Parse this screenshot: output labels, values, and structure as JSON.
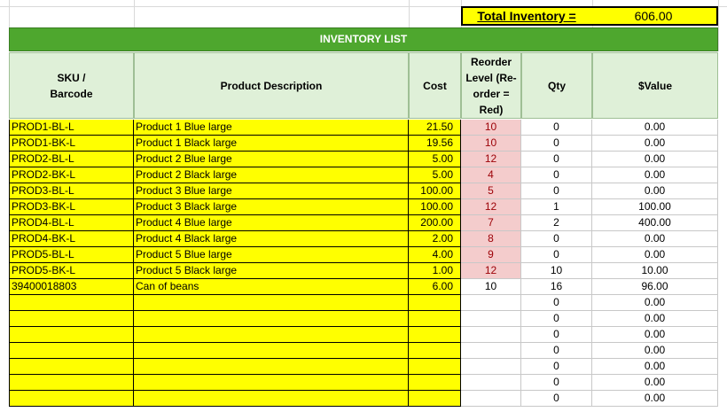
{
  "total": {
    "label": "Total Inventory =",
    "value": "606.00"
  },
  "title": "INVENTORY LIST",
  "headers": {
    "sku": "SKU / Barcode",
    "description": "Product Description",
    "cost": "Cost",
    "reorder": "Reorder Level (Re-order = Red)",
    "qty": "Qty",
    "value": "$Value"
  },
  "colors": {
    "title_bg": "#4ea72e",
    "header_bg": "#dff0d8",
    "input_yellow": "#ffff00",
    "reorder_red": "#f4cccc",
    "total_yellow": "#ffff00"
  },
  "rows": [
    {
      "sku": "PROD1-BL-L",
      "description": "Product 1 Blue large",
      "cost": "21.50",
      "reorder": "10",
      "qty": "0",
      "value": "0.00",
      "alert": true
    },
    {
      "sku": "PROD1-BK-L",
      "description": "Product 1 Black large",
      "cost": "19.56",
      "reorder": "10",
      "qty": "0",
      "value": "0.00",
      "alert": true
    },
    {
      "sku": "PROD2-BL-L",
      "description": "Product 2 Blue large",
      "cost": "5.00",
      "reorder": "12",
      "qty": "0",
      "value": "0.00",
      "alert": true
    },
    {
      "sku": "PROD2-BK-L",
      "description": "Product 2 Black large",
      "cost": "5.00",
      "reorder": "4",
      "qty": "0",
      "value": "0.00",
      "alert": true
    },
    {
      "sku": "PROD3-BL-L",
      "description": "Product 3 Blue large",
      "cost": "100.00",
      "reorder": "5",
      "qty": "0",
      "value": "0.00",
      "alert": true
    },
    {
      "sku": "PROD3-BK-L",
      "description": "Product 3 Black large",
      "cost": "100.00",
      "reorder": "12",
      "qty": "1",
      "value": "100.00",
      "alert": true
    },
    {
      "sku": "PROD4-BL-L",
      "description": "Product 4 Blue large",
      "cost": "200.00",
      "reorder": "7",
      "qty": "2",
      "value": "400.00",
      "alert": true
    },
    {
      "sku": "PROD4-BK-L",
      "description": "Product 4 Black large",
      "cost": "2.00",
      "reorder": "8",
      "qty": "0",
      "value": "0.00",
      "alert": true
    },
    {
      "sku": "PROD5-BL-L",
      "description": "Product 5 Blue large",
      "cost": "4.00",
      "reorder": "9",
      "qty": "0",
      "value": "0.00",
      "alert": true
    },
    {
      "sku": "PROD5-BK-L",
      "description": "Product 5 Black large",
      "cost": "1.00",
      "reorder": "12",
      "qty": "10",
      "value": "10.00",
      "alert": true
    },
    {
      "sku": "39400018803",
      "description": "Can of beans",
      "cost": "6.00",
      "reorder": "10",
      "qty": "16",
      "value": "96.00",
      "alert": false
    },
    {
      "sku": "",
      "description": "",
      "cost": "",
      "reorder": "",
      "qty": "0",
      "value": "0.00",
      "alert": false
    },
    {
      "sku": "",
      "description": "",
      "cost": "",
      "reorder": "",
      "qty": "0",
      "value": "0.00",
      "alert": false
    },
    {
      "sku": "",
      "description": "",
      "cost": "",
      "reorder": "",
      "qty": "0",
      "value": "0.00",
      "alert": false
    },
    {
      "sku": "",
      "description": "",
      "cost": "",
      "reorder": "",
      "qty": "0",
      "value": "0.00",
      "alert": false
    },
    {
      "sku": "",
      "description": "",
      "cost": "",
      "reorder": "",
      "qty": "0",
      "value": "0.00",
      "alert": false
    },
    {
      "sku": "",
      "description": "",
      "cost": "",
      "reorder": "",
      "qty": "0",
      "value": "0.00",
      "alert": false
    },
    {
      "sku": "",
      "description": "",
      "cost": "",
      "reorder": "",
      "qty": "0",
      "value": "0.00",
      "alert": false
    }
  ]
}
